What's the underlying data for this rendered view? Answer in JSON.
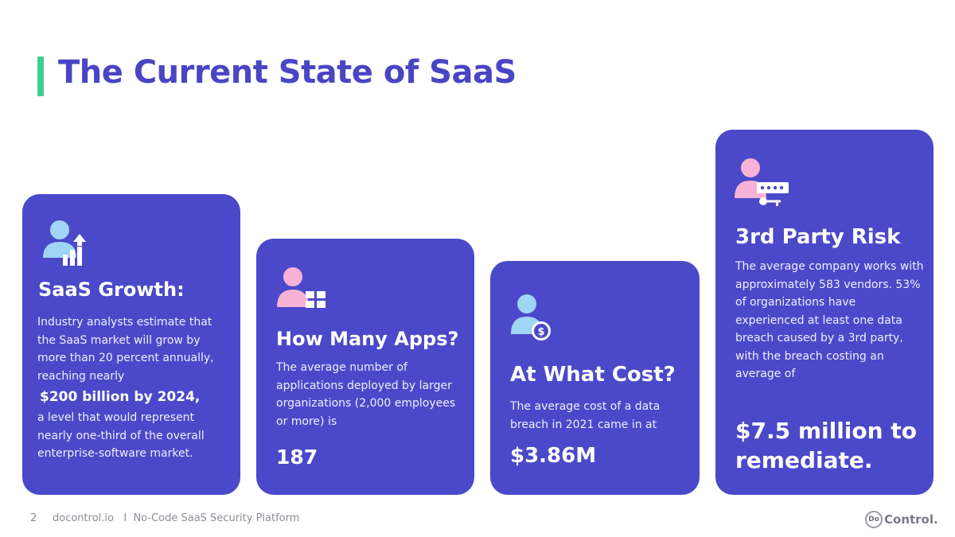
{
  "page": {
    "title": "The Current State of SaaS"
  },
  "cards": [
    {
      "icon": "user-growth-chart-icon",
      "heading": "SaaS Growth:",
      "body_before": "Industry analysts estimate that the SaaS market will grow by more than 20 percent annually, reaching nearly",
      "highlight": "$200 billion by 2024,",
      "body_after": "a level that would represent nearly one-third of the overall enterprise-software market."
    },
    {
      "icon": "user-apps-grid-icon",
      "heading": "How Many Apps?",
      "body": "The average number of applications deployed by larger organizations (2,000 employees or more) is",
      "highlight": "187"
    },
    {
      "icon": "user-dollar-icon",
      "heading": "At What Cost?",
      "body": "The average cost of a data breach in 2021 came in at",
      "highlight": "$3.86M"
    },
    {
      "icon": "user-password-key-icon",
      "heading": "3rd Party Risk",
      "body": "The average company works with approximately 583 vendors. 53% of organizations have experienced at least one data breach caused by a 3rd party, with the breach costing an average of",
      "highlight": "$7.5 million to remediate."
    }
  ],
  "footer": {
    "page_number": "2",
    "text": "docontrol.io   I  No-Code SaaS Security Platform",
    "logo_mark": "Do",
    "logo_text": "Control."
  },
  "colors": {
    "title": "#4a45c4",
    "accent_bar": "#3ecf8e",
    "card_bg": "#4b49c9",
    "icon_blue": "#9fd6f5",
    "icon_pink": "#f6b3d6"
  }
}
